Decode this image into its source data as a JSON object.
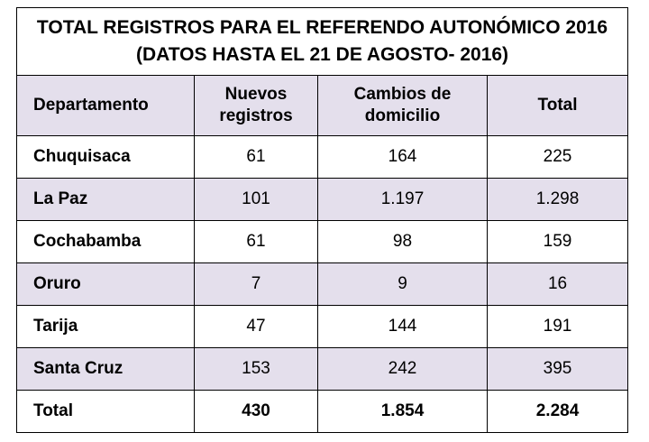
{
  "chart_data": {
    "type": "table",
    "title_line1": "TOTAL REGISTROS PARA EL REFERENDO AUTONÓMICO 2016",
    "title_line2": "(DATOS HASTA EL 21 DE AGOSTO- 2016)",
    "header_bg": "#e4dfec",
    "columns": [
      {
        "line1": "Departamento",
        "line2": ""
      },
      {
        "line1": "Nuevos",
        "line2": "registros"
      },
      {
        "line1": "Cambios de",
        "line2": "domicilio"
      },
      {
        "line1": "Total",
        "line2": ""
      }
    ],
    "rows": [
      {
        "department": "Chuquisaca",
        "nuevos": "61",
        "cambios": "164",
        "total": "225",
        "shaded": false
      },
      {
        "department": "La Paz",
        "nuevos": "101",
        "cambios": "1.197",
        "total": "1.298",
        "shaded": true
      },
      {
        "department": "Cochabamba",
        "nuevos": "61",
        "cambios": "98",
        "total": "159",
        "shaded": false
      },
      {
        "department": "Oruro",
        "nuevos": "7",
        "cambios": "9",
        "total": "16",
        "shaded": true
      },
      {
        "department": "Tarija",
        "nuevos": "47",
        "cambios": "144",
        "total": "191",
        "shaded": false
      },
      {
        "department": "Santa Cruz",
        "nuevos": "153",
        "cambios": "242",
        "total": "395",
        "shaded": true
      }
    ],
    "totals": {
      "label": "Total",
      "nuevos": "430",
      "cambios": "1.854",
      "total": "2.284"
    }
  }
}
